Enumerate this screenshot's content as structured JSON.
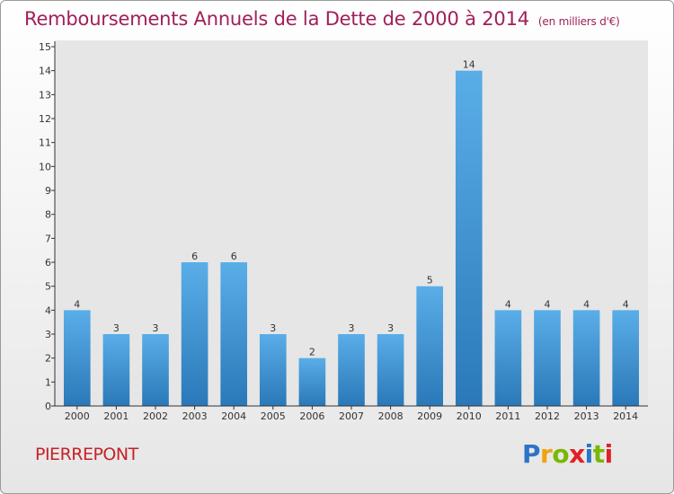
{
  "header": {
    "title": "Remboursements Annuels de la Dette de 2000 à 2014",
    "unit": "(en milliers d'€)"
  },
  "footer": {
    "commune": "PIERREPONT",
    "logo": {
      "letters": [
        "P",
        "r",
        "o",
        "x",
        "i",
        "t",
        "i"
      ],
      "colors": [
        "#2e74c6",
        "#f2a20d",
        "#7ab800",
        "#e31f26",
        "#2e74c6",
        "#7ab800",
        "#e31f26"
      ]
    }
  },
  "chart_data": {
    "type": "bar",
    "title": "Remboursements Annuels de la Dette de 2000 à 2014",
    "categories": [
      "2000",
      "2001",
      "2002",
      "2003",
      "2004",
      "2005",
      "2006",
      "2007",
      "2008",
      "2009",
      "2010",
      "2011",
      "2012",
      "2013",
      "2014"
    ],
    "values": [
      4,
      3,
      3,
      6,
      6,
      3,
      2,
      3,
      3,
      5,
      14,
      4,
      4,
      4,
      4
    ],
    "ylim": [
      0,
      15
    ],
    "yticks": [
      0,
      1,
      2,
      3,
      4,
      5,
      6,
      7,
      8,
      9,
      10,
      11,
      12,
      13,
      14,
      15
    ],
    "grid": false,
    "bar_color_top": "#5aaee8",
    "bar_color_bottom": "#2a78b8"
  }
}
